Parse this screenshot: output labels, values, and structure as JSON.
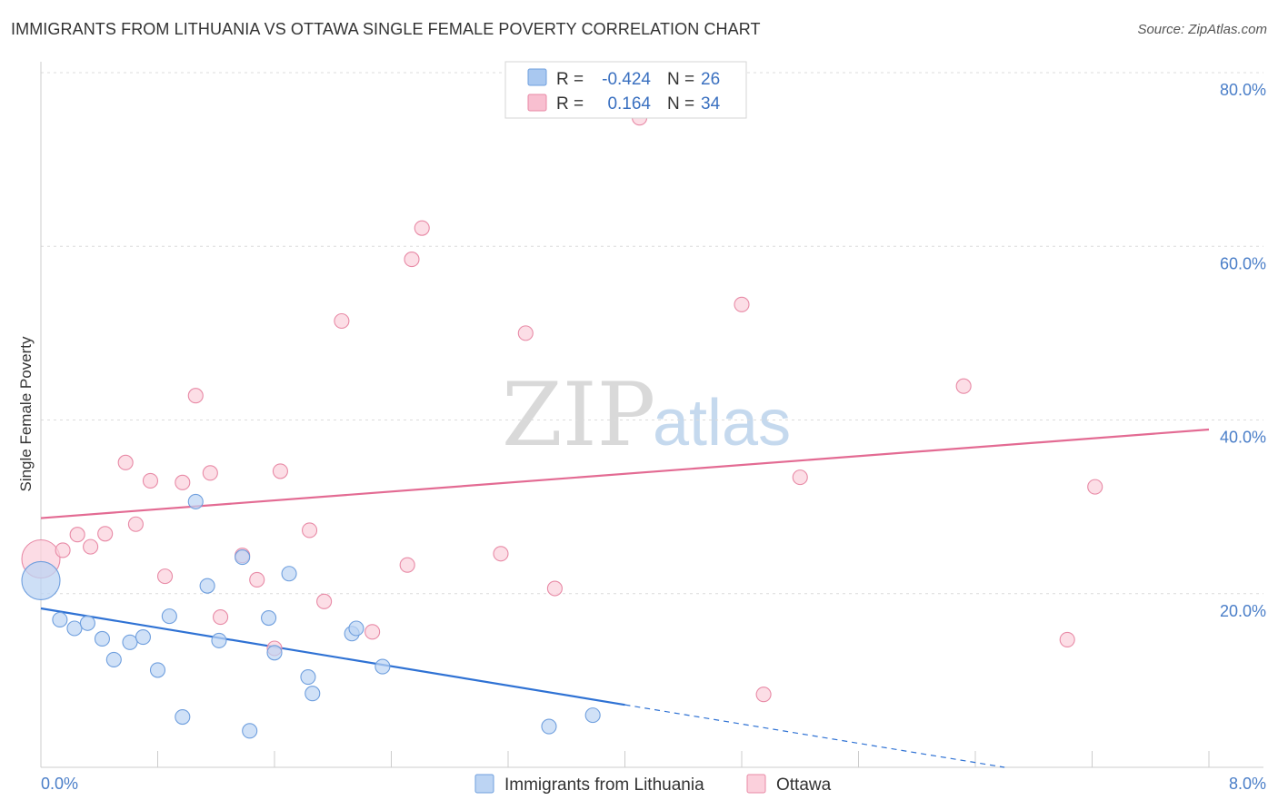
{
  "title": "IMMIGRANTS FROM LITHUANIA VS OTTAWA SINGLE FEMALE POVERTY CORRELATION CHART",
  "source": "Source: ZipAtlas.com",
  "watermark": {
    "zip": "ZIP",
    "atlas": "atlas"
  },
  "legend": {
    "rows": [
      {
        "r_label": "R =",
        "r_value": "-0.424",
        "n_label": "N =",
        "n_value": "26",
        "color": "#a9c8f0",
        "stroke": "#6f9fde"
      },
      {
        "r_label": "R =",
        "r_value": "0.164",
        "n_label": "N =",
        "n_value": "34",
        "color": "#f8bfd0",
        "stroke": "#e88aa6"
      }
    ]
  },
  "bottom_legend": [
    {
      "label": "Immigrants from Lithuania",
      "color": "#bcd4f3",
      "stroke": "#6f9fde"
    },
    {
      "label": "Ottawa",
      "color": "#fbd0dc",
      "stroke": "#e88aa6"
    }
  ],
  "chart_data": {
    "type": "scatter",
    "title": "IMMIGRANTS FROM LITHUANIA VS OTTAWA SINGLE FEMALE POVERTY CORRELATION CHART",
    "xlabel": "",
    "ylabel": "Single Female Poverty",
    "xlim": [
      0,
      8
    ],
    "ylim": [
      0,
      80
    ],
    "x_tick_labels": [
      "0.0%",
      "8.0%"
    ],
    "y_ticks": [
      20,
      40,
      60,
      80
    ],
    "y_tick_labels": [
      "20.0%",
      "40.0%",
      "60.0%",
      "80.0%"
    ],
    "grid": true,
    "legend_position": "top-center",
    "series": [
      {
        "name": "Immigrants from Lithuania",
        "color": "#6f9fde",
        "fill": "#bcd4f3",
        "points": [
          [
            0.0,
            21.5,
            "large"
          ],
          [
            0.13,
            17.0
          ],
          [
            0.23,
            16.0
          ],
          [
            0.32,
            16.6
          ],
          [
            0.42,
            14.8
          ],
          [
            0.5,
            12.4
          ],
          [
            0.61,
            14.4
          ],
          [
            0.7,
            15.0
          ],
          [
            0.8,
            11.2
          ],
          [
            0.88,
            17.4
          ],
          [
            0.97,
            5.8
          ],
          [
            1.06,
            30.6
          ],
          [
            1.14,
            20.9
          ],
          [
            1.22,
            14.6
          ],
          [
            1.38,
            24.2
          ],
          [
            1.43,
            4.2
          ],
          [
            1.56,
            17.2
          ],
          [
            1.6,
            13.2
          ],
          [
            1.7,
            22.3
          ],
          [
            1.83,
            10.4
          ],
          [
            1.86,
            8.5
          ],
          [
            2.13,
            15.4
          ],
          [
            2.16,
            16.0
          ],
          [
            2.34,
            11.6
          ],
          [
            3.48,
            4.7
          ],
          [
            3.78,
            6.0
          ]
        ],
        "trend": {
          "x0": 0.0,
          "y0": 18.3,
          "x1": 4.0,
          "y1": 7.2,
          "dash_x1": 6.6,
          "dash_y1": 0.0
        }
      },
      {
        "name": "Ottawa",
        "color": "#e88aa6",
        "fill": "#fbd0dc",
        "points": [
          [
            0.0,
            24.0,
            "large"
          ],
          [
            0.15,
            25.0
          ],
          [
            0.25,
            26.8
          ],
          [
            0.34,
            25.4
          ],
          [
            0.44,
            26.9
          ],
          [
            0.58,
            35.1
          ],
          [
            0.65,
            28.0
          ],
          [
            0.75,
            33.0
          ],
          [
            0.85,
            22.0
          ],
          [
            0.97,
            32.8
          ],
          [
            1.06,
            42.8
          ],
          [
            1.16,
            33.9
          ],
          [
            1.23,
            17.3
          ],
          [
            1.38,
            24.4
          ],
          [
            1.48,
            21.6
          ],
          [
            1.6,
            13.7
          ],
          [
            1.64,
            34.1
          ],
          [
            1.84,
            27.3
          ],
          [
            1.94,
            19.1
          ],
          [
            2.06,
            51.4
          ],
          [
            2.27,
            15.6
          ],
          [
            2.51,
            23.3
          ],
          [
            2.54,
            58.5
          ],
          [
            2.61,
            62.1
          ],
          [
            3.15,
            24.6
          ],
          [
            3.32,
            50.0
          ],
          [
            3.52,
            20.6
          ],
          [
            4.1,
            74.8
          ],
          [
            4.8,
            53.3
          ],
          [
            4.95,
            8.4
          ],
          [
            5.2,
            33.4
          ],
          [
            6.32,
            43.9
          ],
          [
            7.03,
            14.7
          ],
          [
            7.22,
            32.3
          ]
        ],
        "trend": {
          "x0": 0.0,
          "y0": 28.7,
          "x1": 8.0,
          "y1": 38.9
        }
      }
    ]
  }
}
